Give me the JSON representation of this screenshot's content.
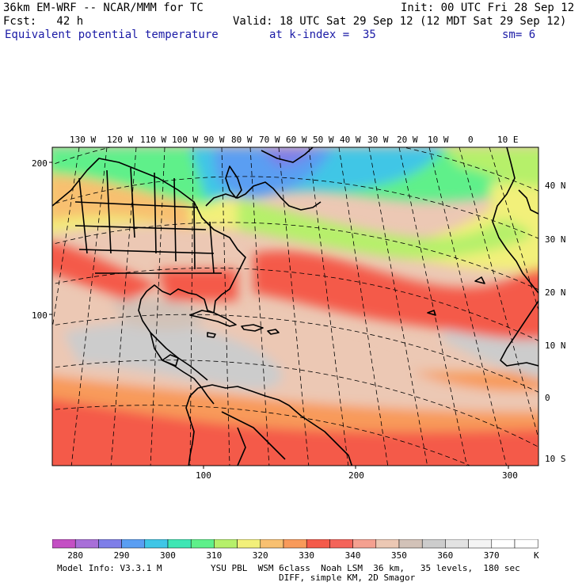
{
  "header": {
    "model": "36km EM-WRF -- NCAR/MMM for TC",
    "init": "Init: 00 UTC Fri 28 Sep 12",
    "fcst": "Fcst:   42 h",
    "valid": "Valid: 18 UTC Sat 29 Sep 12 (12 MDT Sat 29 Sep 12)",
    "field": "Equivalent potential temperature",
    "level": "at k-index =  35",
    "smooth": "sm= 6"
  },
  "map": {
    "lon_labels": [
      "130 W",
      "120 W",
      "110 W",
      "100 W",
      "90 W",
      "80 W",
      "70 W",
      "60 W",
      "50 W",
      "40 W",
      "30 W",
      "20 W",
      "10 W",
      "0",
      "10 E"
    ],
    "lat_labels": [
      "40 N",
      "30 N",
      "20 N",
      "10 N",
      "0",
      "10 S"
    ],
    "grid_y_labels": [
      "200",
      "100"
    ],
    "grid_x_labels": [
      "100",
      "200",
      "300"
    ]
  },
  "legend": {
    "unit": "K",
    "colors": [
      "#c44fc4",
      "#a86fd8",
      "#7e7ee8",
      "#5a9ef2",
      "#3fc6e6",
      "#3ee6b4",
      "#5ef08a",
      "#b6f06a",
      "#f2f07a",
      "#f8c070",
      "#f89a5a",
      "#f45a4a",
      "#f4645a",
      "#f4a090",
      "#ecc8b4",
      "#d2c2b8",
      "#cccccc",
      "#e2e2e2",
      "#f4f4f4",
      "#ffffff",
      "#ffffff"
    ],
    "labels": [
      "280",
      "290",
      "300",
      "310",
      "320",
      "330",
      "340",
      "350",
      "360",
      "370"
    ]
  },
  "footer": {
    "info": "Model Info: V3.3.1 M",
    "physics": "YSU PBL  WSM 6class  Noah LSM  36 km,   35 levels,  180 sec",
    "diff": "DIFF, simple KM, 2D Smagor"
  }
}
